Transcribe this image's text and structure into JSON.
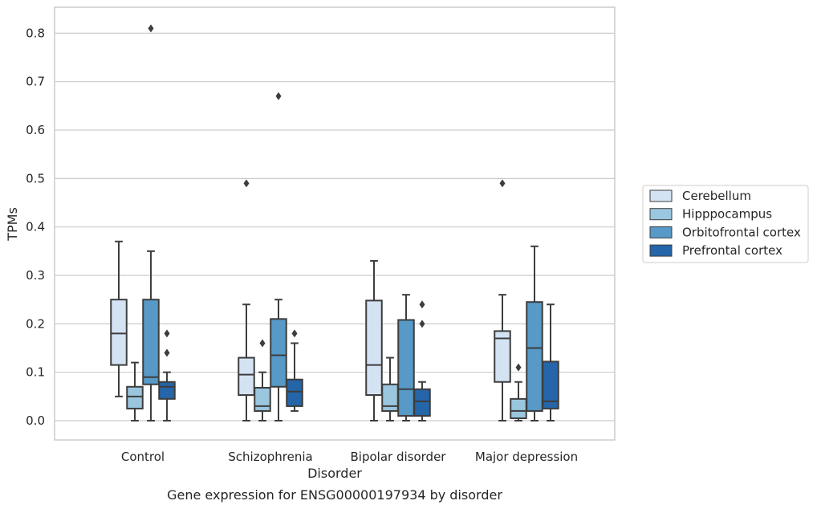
{
  "chart_data": {
    "type": "box",
    "xlabel": "Disorder",
    "ylabel": "TPMs",
    "caption": "Gene expression for ENSG00000197934 by disorder",
    "ylim": [
      -0.04,
      0.85
    ],
    "yticks": [
      "0.0",
      "0.1",
      "0.2",
      "0.3",
      "0.4",
      "0.5",
      "0.6",
      "0.7",
      "0.8"
    ],
    "grid": "horizontal",
    "legend_position": "right",
    "categories": [
      "Control",
      "Schizophrenia",
      "Bipolar disorder",
      "Major depression"
    ],
    "series": [
      {
        "name": "Cerebellum",
        "color": "#d4e3f3",
        "boxes": [
          {
            "whislo": 0.05,
            "q1": 0.115,
            "med": 0.18,
            "q3": 0.25,
            "whishi": 0.37,
            "fliers": []
          },
          {
            "whislo": 0.0,
            "q1": 0.053,
            "med": 0.095,
            "q3": 0.13,
            "whishi": 0.24,
            "fliers": [
              0.49
            ]
          },
          {
            "whislo": 0.0,
            "q1": 0.053,
            "med": 0.115,
            "q3": 0.248,
            "whishi": 0.33,
            "fliers": []
          },
          {
            "whislo": 0.0,
            "q1": 0.08,
            "med": 0.17,
            "q3": 0.185,
            "whishi": 0.26,
            "fliers": [
              0.49
            ]
          }
        ]
      },
      {
        "name": "Hipppocampus",
        "color": "#9ac6df",
        "boxes": [
          {
            "whislo": 0.0,
            "q1": 0.025,
            "med": 0.05,
            "q3": 0.07,
            "whishi": 0.12,
            "fliers": []
          },
          {
            "whislo": 0.0,
            "q1": 0.02,
            "med": 0.03,
            "q3": 0.068,
            "whishi": 0.1,
            "fliers": [
              0.16
            ]
          },
          {
            "whislo": 0.0,
            "q1": 0.02,
            "med": 0.03,
            "q3": 0.075,
            "whishi": 0.13,
            "fliers": []
          },
          {
            "whislo": 0.0,
            "q1": 0.005,
            "med": 0.02,
            "q3": 0.045,
            "whishi": 0.08,
            "fliers": [
              0.11
            ]
          }
        ]
      },
      {
        "name": "Orbitofrontal cortex",
        "color": "#5799c7",
        "boxes": [
          {
            "whislo": 0.0,
            "q1": 0.075,
            "med": 0.09,
            "q3": 0.25,
            "whishi": 0.35,
            "fliers": [
              0.81
            ]
          },
          {
            "whislo": 0.0,
            "q1": 0.07,
            "med": 0.135,
            "q3": 0.21,
            "whishi": 0.25,
            "fliers": [
              0.67
            ]
          },
          {
            "whislo": 0.0,
            "q1": 0.01,
            "med": 0.065,
            "q3": 0.208,
            "whishi": 0.26,
            "fliers": []
          },
          {
            "whislo": 0.0,
            "q1": 0.02,
            "med": 0.15,
            "q3": 0.245,
            "whishi": 0.36,
            "fliers": []
          }
        ]
      },
      {
        "name": "Prefrontal cortex",
        "color": "#2565a9",
        "boxes": [
          {
            "whislo": 0.0,
            "q1": 0.045,
            "med": 0.07,
            "q3": 0.08,
            "whishi": 0.1,
            "fliers": [
              0.14,
              0.18
            ]
          },
          {
            "whislo": 0.02,
            "q1": 0.03,
            "med": 0.06,
            "q3": 0.085,
            "whishi": 0.16,
            "fliers": [
              0.18
            ]
          },
          {
            "whislo": 0.0,
            "q1": 0.01,
            "med": 0.04,
            "q3": 0.065,
            "whishi": 0.08,
            "fliers": [
              0.2,
              0.24
            ]
          },
          {
            "whislo": 0.0,
            "q1": 0.025,
            "med": 0.04,
            "q3": 0.122,
            "whishi": 0.24,
            "fliers": []
          }
        ]
      }
    ]
  }
}
